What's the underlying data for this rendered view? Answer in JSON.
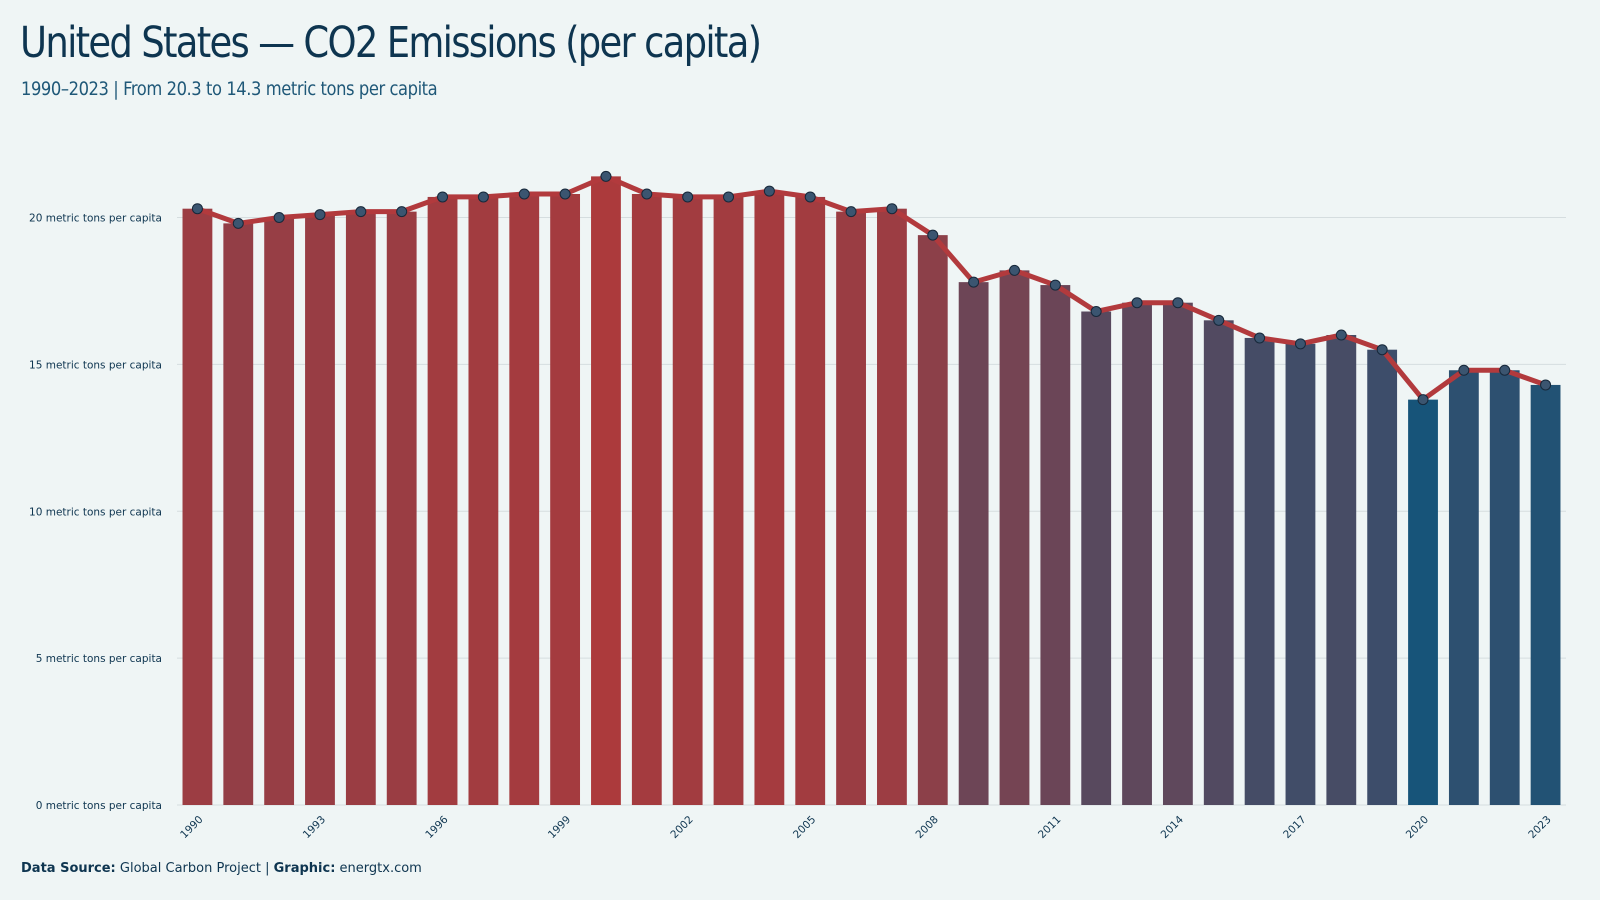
{
  "title": "United States — CO2 Emissions (per capita)",
  "subtitle": "1990–2023 | From 20.3 to 14.3 metric tons per capita",
  "caption": {
    "source_label": "Data Source:",
    "source_value": "Global Carbon Project",
    "separator": "|",
    "graphic_label": "Graphic:",
    "graphic_value": "energtx.com"
  },
  "colors": {
    "background": "#eff5f5",
    "bar_high": "#ac3a3c",
    "bar_low": "#175479",
    "line": "#b23a3d",
    "point_fill": "#3b5570",
    "grid": "#d5dddf",
    "text": "#0e3550"
  },
  "chart_data": {
    "type": "bar",
    "overlay": "line-with-points",
    "x": [
      1990,
      1991,
      1992,
      1993,
      1994,
      1995,
      1996,
      1997,
      1998,
      1999,
      2000,
      2001,
      2002,
      2003,
      2004,
      2005,
      2006,
      2007,
      2008,
      2009,
      2010,
      2011,
      2012,
      2013,
      2014,
      2015,
      2016,
      2017,
      2018,
      2019,
      2020,
      2021,
      2022,
      2023
    ],
    "values": [
      20.3,
      19.8,
      20.0,
      20.1,
      20.2,
      20.2,
      20.7,
      20.7,
      20.8,
      20.8,
      21.4,
      20.8,
      20.7,
      20.7,
      20.9,
      20.7,
      20.2,
      20.3,
      19.4,
      17.8,
      18.2,
      17.7,
      16.8,
      17.1,
      17.1,
      16.5,
      15.9,
      15.7,
      16.0,
      15.5,
      13.8,
      14.8,
      14.8,
      14.3
    ],
    "x_tick_labels": [
      "1990",
      "1993",
      "1996",
      "1999",
      "2002",
      "2005",
      "2008",
      "2011",
      "2014",
      "2017",
      "2020",
      "2023"
    ],
    "y_ticks": [
      0,
      5,
      10,
      15,
      20
    ],
    "y_tick_labels": [
      "0 metric tons per capita",
      "5 metric tons per capita",
      "10 metric tons per capita",
      "15 metric tons per capita",
      "20 metric tons per capita"
    ],
    "ylim": [
      0,
      21.4
    ],
    "grid": "horizontal",
    "legend": "none"
  }
}
